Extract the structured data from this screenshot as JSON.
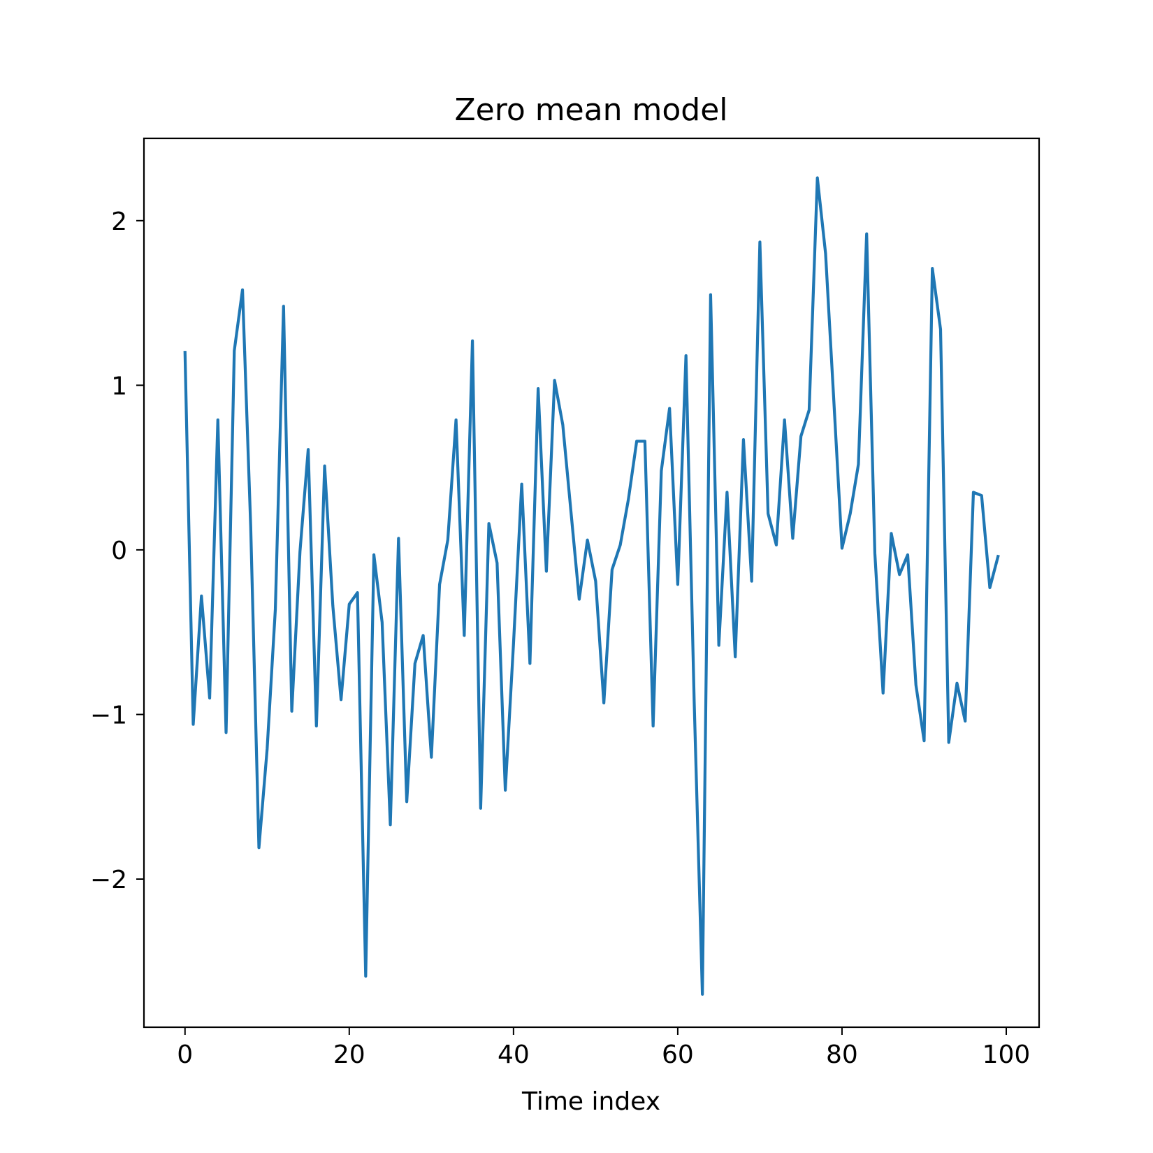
{
  "chart_data": {
    "type": "line",
    "title": "Zero mean model",
    "xlabel": "Time index",
    "ylabel": "",
    "xlim": [
      -5,
      104
    ],
    "ylim": [
      -2.9,
      2.5
    ],
    "xticks": [
      0,
      20,
      40,
      60,
      80,
      100
    ],
    "xtick_labels": [
      "0",
      "20",
      "40",
      "60",
      "80",
      "100"
    ],
    "yticks": [
      -2,
      -1,
      0,
      1,
      2
    ],
    "ytick_labels": [
      "−2",
      "−1",
      "0",
      "1",
      "2"
    ],
    "grid": false,
    "series": [
      {
        "color": "#1f77b4",
        "x": [
          0,
          1,
          2,
          3,
          4,
          5,
          6,
          7,
          8,
          9,
          10,
          11,
          12,
          13,
          14,
          15,
          16,
          17,
          18,
          19,
          20,
          21,
          22,
          23,
          24,
          25,
          26,
          27,
          28,
          29,
          30,
          31,
          32,
          33,
          34,
          35,
          36,
          37,
          38,
          39,
          40,
          41,
          42,
          43,
          44,
          45,
          46,
          47,
          48,
          49,
          50,
          51,
          52,
          53,
          54,
          55,
          56,
          57,
          58,
          59,
          60,
          61,
          62,
          63,
          64,
          65,
          66,
          67,
          68,
          69,
          70,
          71,
          72,
          73,
          74,
          75,
          76,
          77,
          78,
          79,
          80,
          81,
          82,
          83,
          84,
          85,
          86,
          87,
          88,
          89,
          90,
          91,
          92,
          93,
          94,
          95,
          96,
          97,
          98,
          99
        ],
        "values": [
          1.2,
          -1.06,
          -0.28,
          -0.9,
          0.79,
          -1.11,
          1.21,
          1.58,
          0.14,
          -1.81,
          -1.21,
          -0.36,
          1.48,
          -0.98,
          -0.01,
          0.61,
          -1.07,
          0.51,
          -0.34,
          -0.91,
          -0.33,
          -0.26,
          -2.59,
          -0.03,
          -0.44,
          -1.67,
          0.07,
          -1.53,
          -0.69,
          -0.52,
          -1.26,
          -0.21,
          0.06,
          0.79,
          -0.52,
          1.27,
          -1.57,
          0.16,
          -0.08,
          -1.46,
          -0.57,
          0.4,
          -0.69,
          0.98,
          -0.13,
          1.03,
          0.76,
          0.23,
          -0.3,
          0.06,
          -0.19,
          -0.93,
          -0.12,
          0.03,
          0.31,
          0.66,
          0.66,
          -1.07,
          0.48,
          0.86,
          -0.21,
          1.18,
          -0.92,
          -2.7,
          1.55,
          -0.58,
          0.35,
          -0.65,
          0.67,
          -0.19,
          1.87,
          0.22,
          0.03,
          0.79,
          0.07,
          0.69,
          0.85,
          2.26,
          1.8,
          0.91,
          0.01,
          0.22,
          0.52,
          1.92,
          -0.02,
          -0.87,
          0.1,
          -0.15,
          -0.03,
          -0.82,
          -1.16,
          1.71,
          1.34,
          -1.17,
          -0.81,
          -1.04,
          0.35,
          0.33,
          -0.23,
          -0.04
        ]
      }
    ]
  }
}
